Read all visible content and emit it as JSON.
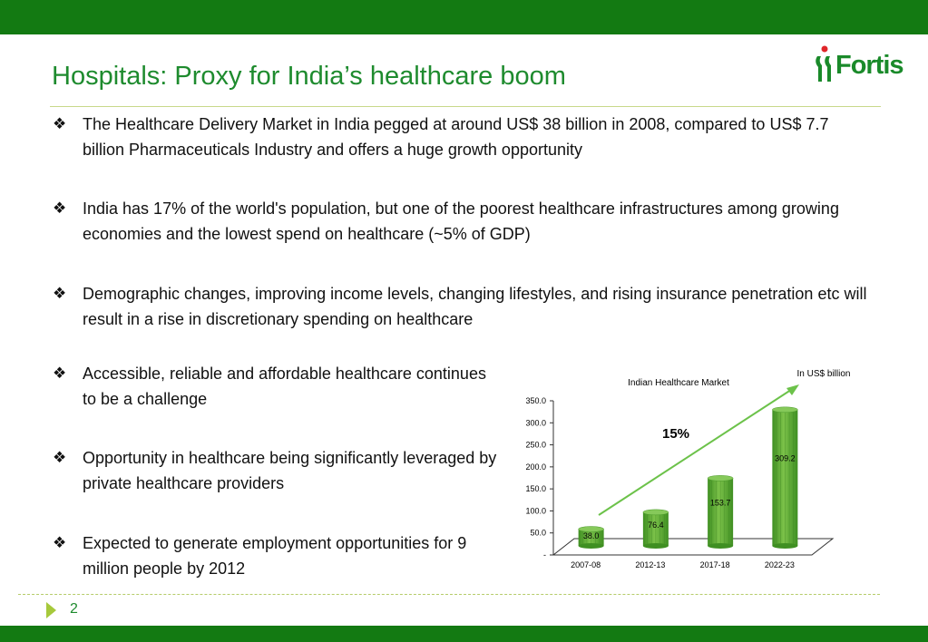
{
  "slide": {
    "title": "Hospitals: Proxy for India’s healthcare boom",
    "logo_text": "Fortis",
    "page_number": "2",
    "bullet_glyph": "❖",
    "bullets": [
      "The Healthcare Delivery Market in India pegged at around US$ 38 billion in 2008, compared to US$ 7.7 billion Pharmaceuticals Industry and offers a huge growth opportunity",
      "India has 17% of the world's population, but one of the poorest healthcare infrastructures among growing economies and the lowest spend on healthcare (~5% of GDP)",
      "Demographic changes, improving income levels, changing lifestyles, and rising insurance penetration etc will result in a rise in discretionary spending on healthcare",
      "Accessible, reliable and affordable healthcare continues to be a challenge",
      "Opportunity in healthcare being significantly leveraged by private healthcare providers",
      "Expected to generate employment opportunities for 9 million people by 2012"
    ],
    "colors": {
      "brand_green": "#137a12",
      "title_green": "#1e8b2e",
      "bar_green": "#5aaa32",
      "logo_red": "#e0262a"
    }
  },
  "chart_data": {
    "type": "bar",
    "title": "Indian Healthcare Market",
    "unit_note": "In US$ billion",
    "categories": [
      "2007-08",
      "2012-13",
      "2017-18",
      "2022-23"
    ],
    "values": [
      38.0,
      76.4,
      153.7,
      309.2
    ],
    "data_labels": [
      "38.0",
      "76.4",
      "153.7",
      "309.2"
    ],
    "y_ticks": [
      "-",
      "50.0",
      "100.0",
      "150.0",
      "200.0",
      "250.0",
      "300.0",
      "350.0"
    ],
    "ylim": [
      0,
      350
    ],
    "growth_annotation": "15%",
    "xlabel": "",
    "ylabel": "",
    "grid": false
  }
}
